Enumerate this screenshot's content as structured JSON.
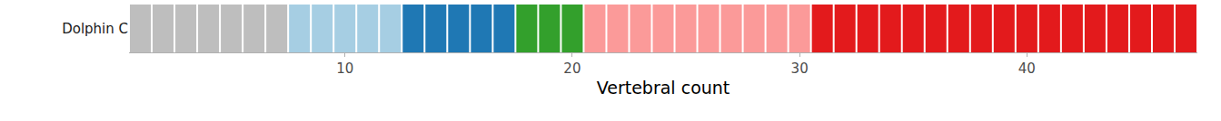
{
  "chart_data": {
    "type": "tile",
    "categories": [
      "Dolphin C"
    ],
    "x": [
      1,
      2,
      3,
      4,
      5,
      6,
      7,
      8,
      9,
      10,
      11,
      12,
      13,
      14,
      15,
      16,
      17,
      18,
      19,
      20,
      21,
      22,
      23,
      24,
      25,
      26,
      27,
      28,
      29,
      30,
      31,
      32,
      33,
      34,
      35,
      36,
      37,
      38,
      39,
      40,
      41,
      42,
      43,
      44,
      45,
      46,
      47
    ],
    "colors": [
      "#bebebe",
      "#bebebe",
      "#bebebe",
      "#bebebe",
      "#bebebe",
      "#bebebe",
      "#bebebe",
      "#a6cee3",
      "#a6cee3",
      "#a6cee3",
      "#a6cee3",
      "#a6cee3",
      "#1f78b4",
      "#1f78b4",
      "#1f78b4",
      "#1f78b4",
      "#1f78b4",
      "#33a02c",
      "#33a02c",
      "#33a02c",
      "#fb9a99",
      "#fb9a99",
      "#fb9a99",
      "#fb9a99",
      "#fb9a99",
      "#fb9a99",
      "#fb9a99",
      "#fb9a99",
      "#fb9a99",
      "#fb9a99",
      "#e31a1c",
      "#e31a1c",
      "#e31a1c",
      "#e31a1c",
      "#e31a1c",
      "#e31a1c",
      "#e31a1c",
      "#e31a1c",
      "#e31a1c",
      "#e31a1c",
      "#e31a1c",
      "#e31a1c",
      "#e31a1c",
      "#e31a1c",
      "#e31a1c",
      "#e31a1c",
      "#e31a1c"
    ],
    "x_label": "Vertebral count",
    "xlim": [
      0.5,
      47.5
    ],
    "xticks": [
      10,
      20,
      30,
      40
    ],
    "grid": false
  }
}
